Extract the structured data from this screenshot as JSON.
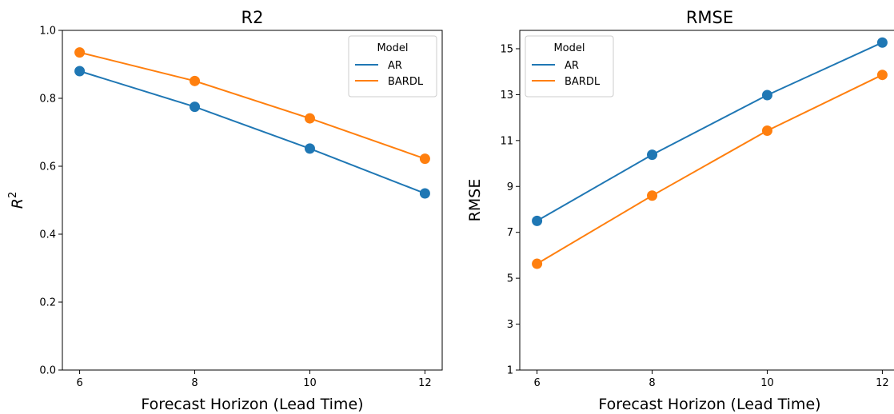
{
  "chart_data": [
    {
      "type": "line",
      "title": "R2",
      "xlabel": "Forecast Horizon (Lead Time)",
      "ylabel": "R",
      "ylabel_superscript": "2",
      "x": [
        6,
        8,
        10,
        12
      ],
      "xticks": [
        "6",
        "8",
        "10",
        "12"
      ],
      "xlim": [
        5.7,
        12.3
      ],
      "ylim": [
        0.0,
        1.0
      ],
      "yticks": [
        "0.0",
        "0.2",
        "0.4",
        "0.6",
        "0.8",
        "1.0"
      ],
      "grid": false,
      "legend": {
        "title": "Model",
        "placement": "top-right"
      },
      "series": [
        {
          "name": "AR",
          "color": "#1f77b4",
          "values": [
            0.88,
            0.775,
            0.652,
            0.52
          ]
        },
        {
          "name": "BARDL",
          "color": "#ff7f0e",
          "values": [
            0.935,
            0.851,
            0.741,
            0.622
          ]
        }
      ]
    },
    {
      "type": "line",
      "title": "RMSE",
      "xlabel": "Forecast Horizon (Lead Time)",
      "ylabel": "RMSE",
      "x": [
        6,
        8,
        10,
        12
      ],
      "xticks": [
        "6",
        "8",
        "10",
        "12"
      ],
      "xlim": [
        5.7,
        12.3
      ],
      "ylim": [
        1,
        15.8
      ],
      "yticks": [
        "1",
        "3",
        "5",
        "7",
        "9",
        "11",
        "13",
        "15"
      ],
      "grid": false,
      "legend": {
        "title": "Model",
        "placement": "top-left"
      },
      "series": [
        {
          "name": "AR",
          "color": "#1f77b4",
          "values": [
            7.5,
            10.38,
            12.98,
            15.27
          ]
        },
        {
          "name": "BARDL",
          "color": "#ff7f0e",
          "values": [
            5.63,
            8.6,
            11.43,
            13.86
          ]
        }
      ]
    }
  ]
}
